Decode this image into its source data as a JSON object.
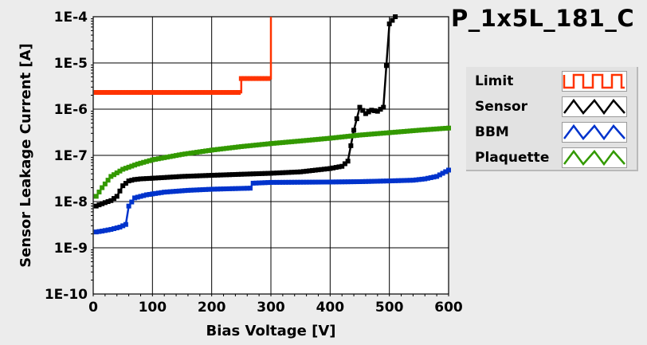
{
  "title": "P_1x5L_181_C",
  "legend": [
    {
      "label": "Limit",
      "color": "#ff3300",
      "pattern": "square"
    },
    {
      "label": "Sensor",
      "color": "#000000",
      "pattern": "triangle"
    },
    {
      "label": "BBM",
      "color": "#0033cc",
      "pattern": "triangle"
    },
    {
      "label": "Plaquette",
      "color": "#339900",
      "pattern": "triangle"
    }
  ],
  "chart_data": {
    "type": "line",
    "xlabel": "Bias Voltage [V]",
    "ylabel": "Sensor Leakage Current [A]",
    "xlim": [
      0,
      600
    ],
    "ylim": [
      1e-10,
      0.0001
    ],
    "y_scale": "log",
    "grid": true,
    "x_ticks": [
      0,
      100,
      200,
      300,
      400,
      500,
      600
    ],
    "x_tick_labels": [
      "0",
      "100",
      "200",
      "300",
      "400",
      "500",
      "600"
    ],
    "y_ticks": [
      1e-10,
      1e-09,
      1e-08,
      1e-07,
      1e-06,
      1e-05,
      0.0001
    ],
    "y_tick_labels": [
      "1E-10",
      "1E-9",
      "1E-8",
      "1E-7",
      "1E-6",
      "1E-5",
      "1E-4"
    ],
    "series": [
      {
        "name": "Limit",
        "color": "#ff3300",
        "step": true,
        "points": [
          [
            5,
            2.3e-06
          ],
          [
            250,
            2.3e-06
          ],
          [
            250,
            4.6e-06
          ],
          [
            300,
            4.6e-06
          ],
          [
            300,
            0.0001
          ]
        ]
      },
      {
        "name": "Sensor",
        "color": "#000000",
        "step": false,
        "points": [
          [
            5,
            8e-09
          ],
          [
            10,
            8.5e-09
          ],
          [
            20,
            9.5e-09
          ],
          [
            30,
            1.05e-08
          ],
          [
            40,
            1.3e-08
          ],
          [
            50,
            2.2e-08
          ],
          [
            60,
            2.8e-08
          ],
          [
            70,
            3e-08
          ],
          [
            80,
            3.1e-08
          ],
          [
            100,
            3.2e-08
          ],
          [
            150,
            3.5e-08
          ],
          [
            200,
            3.7e-08
          ],
          [
            250,
            3.9e-08
          ],
          [
            300,
            4.1e-08
          ],
          [
            350,
            4.4e-08
          ],
          [
            400,
            5.2e-08
          ],
          [
            420,
            5.8e-08
          ],
          [
            430,
            7.5e-08
          ],
          [
            440,
            3.5e-07
          ],
          [
            450,
            1.1e-06
          ],
          [
            460,
            8e-07
          ],
          [
            470,
            9.5e-07
          ],
          [
            480,
            9e-07
          ],
          [
            490,
            1.1e-06
          ],
          [
            500,
            7e-05
          ],
          [
            510,
            0.0001
          ]
        ]
      },
      {
        "name": "BBM",
        "color": "#0033cc",
        "step": false,
        "points": [
          [
            5,
            2.2e-09
          ],
          [
            15,
            2.3e-09
          ],
          [
            30,
            2.5e-09
          ],
          [
            45,
            2.8e-09
          ],
          [
            55,
            3.2e-09
          ],
          [
            60,
            8e-09
          ],
          [
            70,
            1.2e-08
          ],
          [
            90,
            1.4e-08
          ],
          [
            120,
            1.6e-08
          ],
          [
            160,
            1.75e-08
          ],
          [
            200,
            1.85e-08
          ],
          [
            265,
            1.95e-08
          ],
          [
            270,
            2.5e-08
          ],
          [
            300,
            2.6e-08
          ],
          [
            400,
            2.65e-08
          ],
          [
            450,
            2.7e-08
          ],
          [
            500,
            2.8e-08
          ],
          [
            540,
            2.9e-08
          ],
          [
            560,
            3.1e-08
          ],
          [
            580,
            3.5e-08
          ],
          [
            600,
            4.8e-08
          ]
        ]
      },
      {
        "name": "Plaquette",
        "color": "#339900",
        "step": false,
        "points": [
          [
            5,
            1.3e-08
          ],
          [
            15,
            2e-08
          ],
          [
            30,
            3.5e-08
          ],
          [
            50,
            5e-08
          ],
          [
            75,
            6.5e-08
          ],
          [
            100,
            8e-08
          ],
          [
            150,
            1.05e-07
          ],
          [
            200,
            1.3e-07
          ],
          [
            250,
            1.55e-07
          ],
          [
            300,
            1.8e-07
          ],
          [
            350,
            2.05e-07
          ],
          [
            400,
            2.35e-07
          ],
          [
            450,
            2.75e-07
          ],
          [
            500,
            3.1e-07
          ],
          [
            550,
            3.5e-07
          ],
          [
            600,
            3.9e-07
          ]
        ]
      }
    ]
  }
}
